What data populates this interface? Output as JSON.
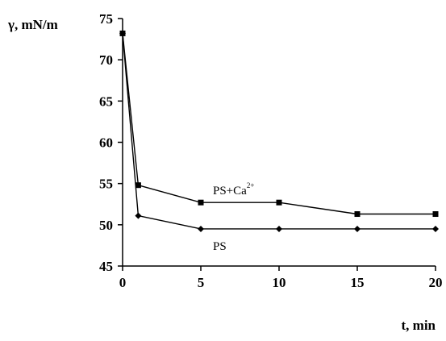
{
  "chart_data": {
    "type": "line",
    "ylabel": "γ, mN/m",
    "xlabel": "t, min",
    "x_ticks": [
      "0",
      "5",
      "10",
      "15",
      "20"
    ],
    "y_ticks": [
      "45",
      "50",
      "55",
      "60",
      "65",
      "70",
      "75"
    ],
    "xlim": [
      0,
      20
    ],
    "ylim": [
      45,
      75
    ],
    "grid": false,
    "legend": "none",
    "series": [
      {
        "name": "PS+Ca2+",
        "label_main": "PS+Ca",
        "label_sup": "2+",
        "marker": "square",
        "x": [
          0,
          1,
          5,
          10,
          15,
          20
        ],
        "values": [
          73.2,
          54.8,
          52.7,
          52.7,
          51.3,
          51.3
        ]
      },
      {
        "name": "PS",
        "label_main": "PS",
        "marker": "diamond",
        "x": [
          0,
          1,
          5,
          10,
          15,
          20
        ],
        "values": [
          73.2,
          51.1,
          49.5,
          49.5,
          49.5,
          49.5
        ]
      }
    ],
    "colors": {
      "line": "#000000"
    }
  }
}
